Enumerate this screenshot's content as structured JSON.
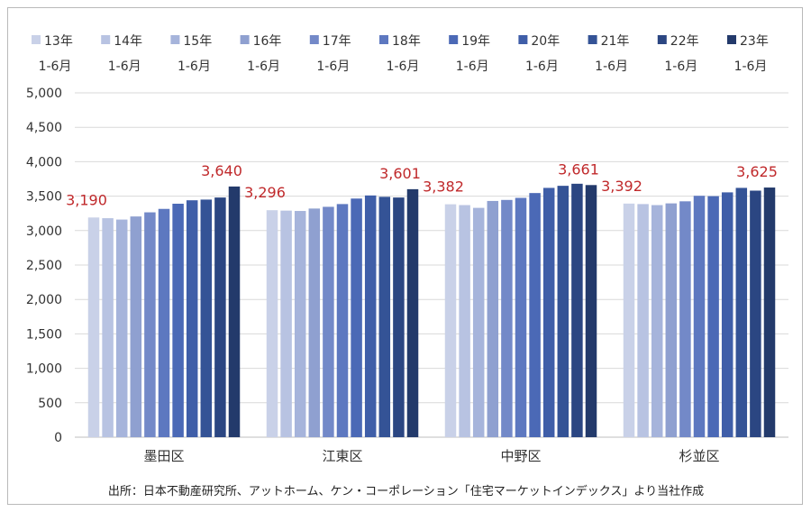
{
  "chart_data": {
    "type": "bar",
    "categories": [
      "墨田区",
      "江東区",
      "中野区",
      "杉並区"
    ],
    "series": [
      {
        "name": "13年\n1-6月",
        "color": "#c9d1e8",
        "values": [
          3190,
          3296,
          3382,
          3392
        ]
      },
      {
        "name": "14年\n1-6月",
        "color": "#b8c3e2",
        "values": [
          3180,
          3290,
          3370,
          3385
        ]
      },
      {
        "name": "15年\n1-6月",
        "color": "#a6b4db",
        "values": [
          3160,
          3285,
          3330,
          3370
        ]
      },
      {
        "name": "16年\n1-6月",
        "color": "#8fa0d0",
        "values": [
          3205,
          3320,
          3430,
          3395
        ]
      },
      {
        "name": "17年\n1-6月",
        "color": "#7389c8",
        "values": [
          3265,
          3345,
          3445,
          3425
        ]
      },
      {
        "name": "18年\n1-6月",
        "color": "#5d78c0",
        "values": [
          3315,
          3385,
          3475,
          3505
        ]
      },
      {
        "name": "19年\n1-6月",
        "color": "#4b69b6",
        "values": [
          3390,
          3465,
          3545,
          3500
        ]
      },
      {
        "name": "20年\n1-6月",
        "color": "#3f5ea8",
        "values": [
          3440,
          3510,
          3620,
          3555
        ]
      },
      {
        "name": "21年\n1-6月",
        "color": "#345396",
        "values": [
          3450,
          3490,
          3650,
          3620
        ]
      },
      {
        "name": "22年\n1-6月",
        "color": "#2b4682",
        "values": [
          3480,
          3480,
          3680,
          3580
        ]
      },
      {
        "name": "23年\n1-6月",
        "color": "#233a6b",
        "values": [
          3640,
          3601,
          3661,
          3625
        ]
      }
    ],
    "data_labels": [
      {
        "category": 0,
        "series": 0,
        "text": "3,190"
      },
      {
        "category": 0,
        "series": 10,
        "text": "3,640"
      },
      {
        "category": 1,
        "series": 0,
        "text": "3,296"
      },
      {
        "category": 1,
        "series": 10,
        "text": "3,601"
      },
      {
        "category": 2,
        "series": 0,
        "text": "3,382"
      },
      {
        "category": 2,
        "series": 10,
        "text": "3,661"
      },
      {
        "category": 3,
        "series": 0,
        "text": "3,392"
      },
      {
        "category": 3,
        "series": 10,
        "text": "3,625"
      }
    ],
    "ylim": [
      0,
      5000
    ],
    "yticks": [
      0,
      500,
      1000,
      1500,
      2000,
      2500,
      3000,
      3500,
      4000,
      4500,
      5000
    ],
    "ytick_labels": [
      "0",
      "500",
      "1,000",
      "1,500",
      "2,000",
      "2,500",
      "3,000",
      "3,500",
      "4,000",
      "4,500",
      "5,000"
    ],
    "grid": true,
    "legend_position": "top",
    "label_color": "#c0292b",
    "source": "出所：日本不動産研究所、アットホーム、ケン・コーポレーション「住宅マーケットインデックス」より当社作成"
  }
}
